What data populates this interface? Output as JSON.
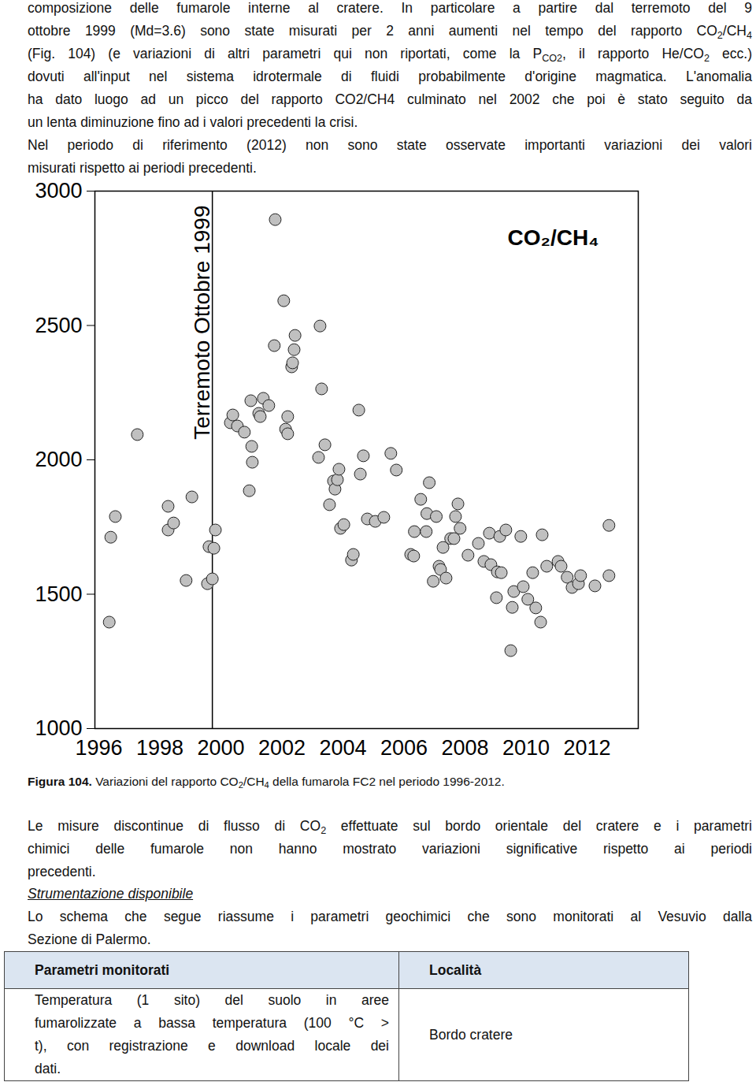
{
  "text_top": {
    "paragraphs": [
      [
        "composizione delle fumarole interne al cratere. In particolare a partire dal terremoto del 9",
        [
          "ottobre 1999 (Md=3.6) sono state misurati per 2 anni aumenti nel tempo del rapporto CO",
          {
            "sub": "2"
          },
          "/CH",
          {
            "sub": "4"
          }
        ],
        [
          "(Fig. 104) (e variazioni di altri parametri qui non riportati, come la P",
          {
            "sub": "CO2"
          },
          ", il rapporto He/CO",
          {
            "sub": "2"
          },
          " ecc.)"
        ],
        "dovuti all'input nel sistema idrotermale di fluidi probabilmente d'origine magmatica. L'anomalia",
        "ha dato luogo ad un picco del rapporto CO2/CH4 culminato nel 2002 che poi è stato seguito da",
        "un lenta diminuzione fino ad i valori precedenti la crisi."
      ],
      [
        "Nel periodo di riferimento (2012) non sono state osservate importanti variazioni dei valori",
        "misurati rispetto ai periodi precedenti."
      ]
    ]
  },
  "chart_data": {
    "type": "scatter",
    "title": "CO₂/CH₄",
    "x": [
      1996.34,
      1996.39,
      1996.54,
      1997.26,
      1998.27,
      1998.27,
      1998.45,
      1998.86,
      1999.05,
      1999.56,
      1999.61,
      1999.72,
      1999.77,
      1999.82,
      2000.31,
      2000.39,
      2000.54,
      2000.77,
      2000.93,
      2000.98,
      2001.01,
      2001.03,
      2001.24,
      2001.29,
      2001.39,
      2001.57,
      2001.75,
      2001.78,
      2002.06,
      2002.12,
      2002.19,
      2002.19,
      2002.32,
      2002.43,
      2002.4,
      2002.35,
      2003.25,
      2003.3,
      2003.2,
      2003.41,
      2003.56,
      2003.69,
      2003.74,
      2003.82,
      2003.87,
      2003.92,
      2004.03,
      2004.28,
      2004.34,
      2004.52,
      2004.57,
      2004.67,
      2004.8,
      2005.06,
      2005.34,
      2005.57,
      2005.75,
      2006.22,
      2006.32,
      2006.34,
      2006.55,
      2006.73,
      2006.83,
      2006.75,
      2006.96,
      2007.06,
      2007.15,
      2007.2,
      2007.28,
      2007.38,
      2007.53,
      2007.64,
      2007.69,
      2007.77,
      2007.84,
      2008.1,
      2008.44,
      2008.62,
      2008.8,
      2008.85,
      2009.03,
      2009.06,
      2009.14,
      2009.19,
      2009.34,
      2009.5,
      2009.55,
      2009.6,
      2009.83,
      2009.91,
      2010.06,
      2010.22,
      2010.32,
      2010.48,
      2010.53,
      2010.68,
      2011.05,
      2011.15,
      2011.35,
      2011.51,
      2011.72,
      2011.79,
      2012.26,
      2012.72,
      2012.72
    ],
    "values": [
      1396,
      1712,
      1789,
      2094,
      1827,
      1739,
      1765,
      1551,
      1862,
      1539,
      1677,
      1557,
      1671,
      1739,
      2138,
      2167,
      2126,
      2103,
      1885,
      2220,
      2050,
      1991,
      2173,
      2161,
      2229,
      2202,
      2425,
      2894,
      2592,
      2114,
      2161,
      2097,
      2346,
      2463,
      2410,
      2361,
      2498,
      2264,
      2009,
      2056,
      1833,
      1921,
      1891,
      1926,
      1965,
      1745,
      1759,
      1627,
      1648,
      2185,
      1947,
      2015,
      1780,
      1771,
      1786,
      2024,
      1962,
      1648,
      1642,
      1733,
      1853,
      1733,
      1915,
      1800,
      1548,
      1789,
      1604,
      1592,
      1674,
      1560,
      1707,
      1707,
      1789,
      1836,
      1745,
      1645,
      1689,
      1622,
      1727,
      1610,
      1487,
      1583,
      1715,
      1580,
      1739,
      1290,
      1451,
      1510,
      1715,
      1528,
      1481,
      1580,
      1449,
      1396,
      1721,
      1604,
      1622,
      1604,
      1563,
      1525,
      1539,
      1569,
      1531,
      1569,
      1756
    ],
    "color": "#c0c0c0",
    "marker": "circle",
    "xlim": [
      1995.87,
      2013.68
    ],
    "ylim": [
      1000,
      3000
    ],
    "xticks": [
      1996,
      1998,
      2000,
      2002,
      2004,
      2006,
      2008,
      2010,
      2012
    ],
    "yticks": [
      1000,
      1500,
      2000,
      2500,
      3000
    ],
    "grid": false,
    "annotations": [
      {
        "text": "Terremoto Ottobre 1999",
        "x": 1999.72
      }
    ]
  },
  "caption": {
    "label": "Figura 104.",
    "text": [
      "Variazioni del rapporto CO",
      {
        "sub": "2"
      },
      "/CH",
      {
        "sub": "4"
      },
      " della fumarola FC2 nel periodo 1996-2012."
    ]
  },
  "text_bottom": {
    "paragraphs": [
      [
        [
          "Le misure discontinue di flusso di CO",
          {
            "sub": "2"
          },
          " effettuate sul bordo orientale del cratere e i parametri"
        ],
        "chimici delle fumarole non hanno mostrato variazioni significative rispetto ai periodi",
        "precedenti."
      ]
    ]
  },
  "section_heading": "Strumentazione disponibile",
  "section_text": {
    "paragraphs": [
      [
        "Lo schema che segue riassume i parametri geochimici che sono monitorati al Vesuvio dalla",
        "Sezione di Palermo."
      ]
    ]
  },
  "table": {
    "header": [
      "Parametri monitorati",
      "Località"
    ],
    "rows": [
      [
        [
          "Temperatura (1 sito) del suolo in aree",
          "fumarolizzate a bassa temperatura (100 °C >",
          "t), con registrazione e download locale dei",
          "dati."
        ],
        "Bordo cratere"
      ]
    ]
  }
}
